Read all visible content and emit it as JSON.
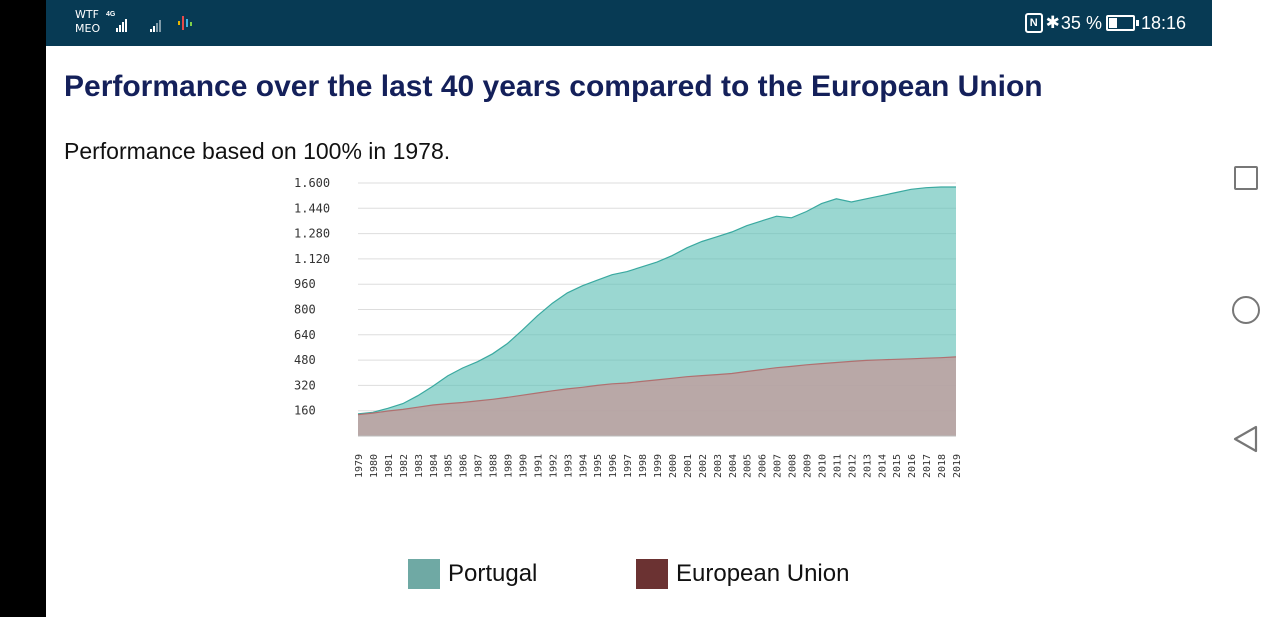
{
  "status_bar": {
    "carrier_top": "WTF",
    "carrier_bottom": "MEO",
    "network_type": "4G",
    "battery": "35 %",
    "time": "18:16",
    "battery_level": 0.35
  },
  "page": {
    "title": "Performance over the last 40 years compared to the European Union",
    "subtitle": "Performance based on 100% in 1978."
  },
  "chart_data": {
    "type": "area",
    "title": "",
    "xlabel": "",
    "ylabel": "",
    "x": [
      "1979",
      "1980",
      "1981",
      "1982",
      "1983",
      "1984",
      "1985",
      "1986",
      "1987",
      "1988",
      "1989",
      "1990",
      "1991",
      "1992",
      "1993",
      "1994",
      "1995",
      "1996",
      "1997",
      "1998",
      "1999",
      "2000",
      "2001",
      "2002",
      "2003",
      "2004",
      "2005",
      "2006",
      "2007",
      "2008",
      "2009",
      "2010",
      "2011",
      "2012",
      "2013",
      "2014",
      "2015",
      "2016",
      "2017",
      "2018",
      "2019"
    ],
    "ylim": [
      0,
      1600
    ],
    "yticks": [
      "1.600",
      "1.440",
      "1.280",
      "1.120",
      "960",
      "800",
      "640",
      "480",
      "320",
      "160"
    ],
    "ytick_values": [
      1600,
      1440,
      1280,
      1120,
      960,
      800,
      640,
      480,
      320,
      160
    ],
    "grid": true,
    "legend_position": "bottom",
    "series": [
      {
        "name": "Portugal",
        "color": "#6fbfb6",
        "values": [
          140,
          150,
          175,
          205,
          255,
          315,
          380,
          430,
          470,
          520,
          585,
          670,
          760,
          840,
          905,
          950,
          985,
          1020,
          1040,
          1070,
          1100,
          1140,
          1190,
          1230,
          1260,
          1290,
          1330,
          1360,
          1390,
          1380,
          1420,
          1470,
          1500,
          1480,
          1500,
          1520,
          1540,
          1560,
          1570,
          1575,
          1575
        ]
      },
      {
        "name": "European Union",
        "color": "#6b3232",
        "values": [
          135,
          145,
          158,
          168,
          182,
          196,
          205,
          212,
          222,
          232,
          244,
          258,
          272,
          286,
          298,
          308,
          320,
          330,
          335,
          345,
          355,
          365,
          375,
          382,
          388,
          395,
          408,
          420,
          432,
          440,
          450,
          458,
          465,
          472,
          478,
          482,
          485,
          488,
          492,
          495,
          500
        ]
      }
    ]
  }
}
